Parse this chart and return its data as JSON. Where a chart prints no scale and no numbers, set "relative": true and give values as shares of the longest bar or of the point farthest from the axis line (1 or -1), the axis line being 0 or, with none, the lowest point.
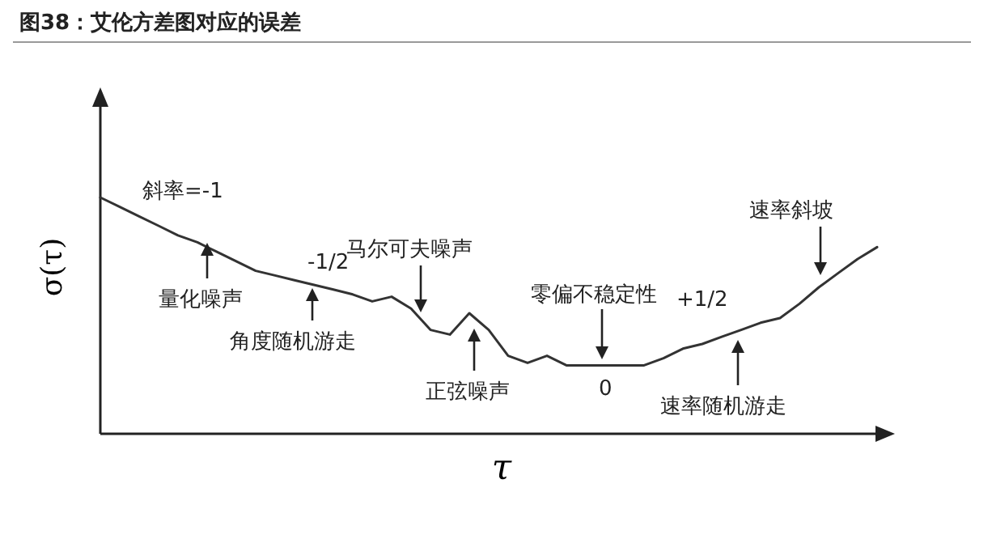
{
  "chart_data": {
    "type": "line",
    "title": "图38：艾伦方差图对应的误差",
    "xlabel": "τ",
    "ylabel": "σ(τ)",
    "relative": true,
    "line_style": "solid",
    "categories": [
      null,
      null,
      null,
      null,
      null,
      null,
      null,
      null,
      null,
      null,
      null,
      null,
      null,
      null,
      null,
      null,
      null,
      null,
      null,
      null,
      null,
      null,
      null,
      null,
      null,
      null,
      null,
      null,
      null,
      null,
      null,
      null,
      null,
      null,
      null,
      null,
      null,
      null,
      null,
      null,
      null
    ],
    "series": [
      {
        "color": "#333333",
        "values": [
          1.0,
          0.96,
          0.92,
          0.88,
          0.84,
          0.81,
          0.77,
          0.73,
          0.69,
          0.67,
          0.65,
          0.63,
          0.61,
          0.59,
          0.56,
          0.58,
          0.53,
          0.44,
          0.42,
          0.51,
          0.44,
          0.33,
          0.3,
          0.33,
          0.29,
          0.29,
          0.29,
          0.29,
          0.29,
          0.32,
          0.36,
          0.38,
          0.41,
          0.44,
          0.47,
          0.49,
          0.55,
          0.62,
          0.68,
          0.74,
          0.79
        ]
      }
    ],
    "annotations": [
      "斜率=-1",
      "量化噪声",
      "-1/2",
      "角度随机游走",
      "马尔可夫噪声",
      "正弦噪声",
      "零偏不稳定性",
      "0",
      "+1/2",
      "速率随机游走",
      "速率斜坡"
    ]
  }
}
